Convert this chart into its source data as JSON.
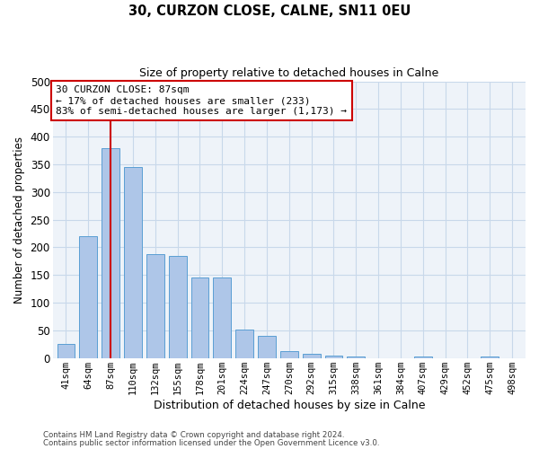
{
  "title1": "30, CURZON CLOSE, CALNE, SN11 0EU",
  "title2": "Size of property relative to detached houses in Calne",
  "xlabel": "Distribution of detached houses by size in Calne",
  "ylabel": "Number of detached properties",
  "categories": [
    "41sqm",
    "64sqm",
    "87sqm",
    "110sqm",
    "132sqm",
    "155sqm",
    "178sqm",
    "201sqm",
    "224sqm",
    "247sqm",
    "270sqm",
    "292sqm",
    "315sqm",
    "338sqm",
    "361sqm",
    "384sqm",
    "407sqm",
    "429sqm",
    "452sqm",
    "475sqm",
    "498sqm"
  ],
  "values": [
    25,
    220,
    380,
    345,
    188,
    185,
    145,
    145,
    52,
    40,
    12,
    8,
    5,
    2,
    0,
    0,
    3,
    0,
    0,
    2,
    0
  ],
  "bar_color": "#aec6e8",
  "bar_edge_color": "#5a9fd4",
  "vline_x_index": 2,
  "vline_color": "#cc0000",
  "annotation_text": "30 CURZON CLOSE: 87sqm\n← 17% of detached houses are smaller (233)\n83% of semi-detached houses are larger (1,173) →",
  "annotation_box_color": "#ffffff",
  "annotation_box_edge": "#cc0000",
  "ylim": [
    0,
    500
  ],
  "yticks": [
    0,
    50,
    100,
    150,
    200,
    250,
    300,
    350,
    400,
    450,
    500
  ],
  "grid_color": "#c8d8ea",
  "background_color": "#eef3f9",
  "footer1": "Contains HM Land Registry data © Crown copyright and database right 2024.",
  "footer2": "Contains public sector information licensed under the Open Government Licence v3.0."
}
